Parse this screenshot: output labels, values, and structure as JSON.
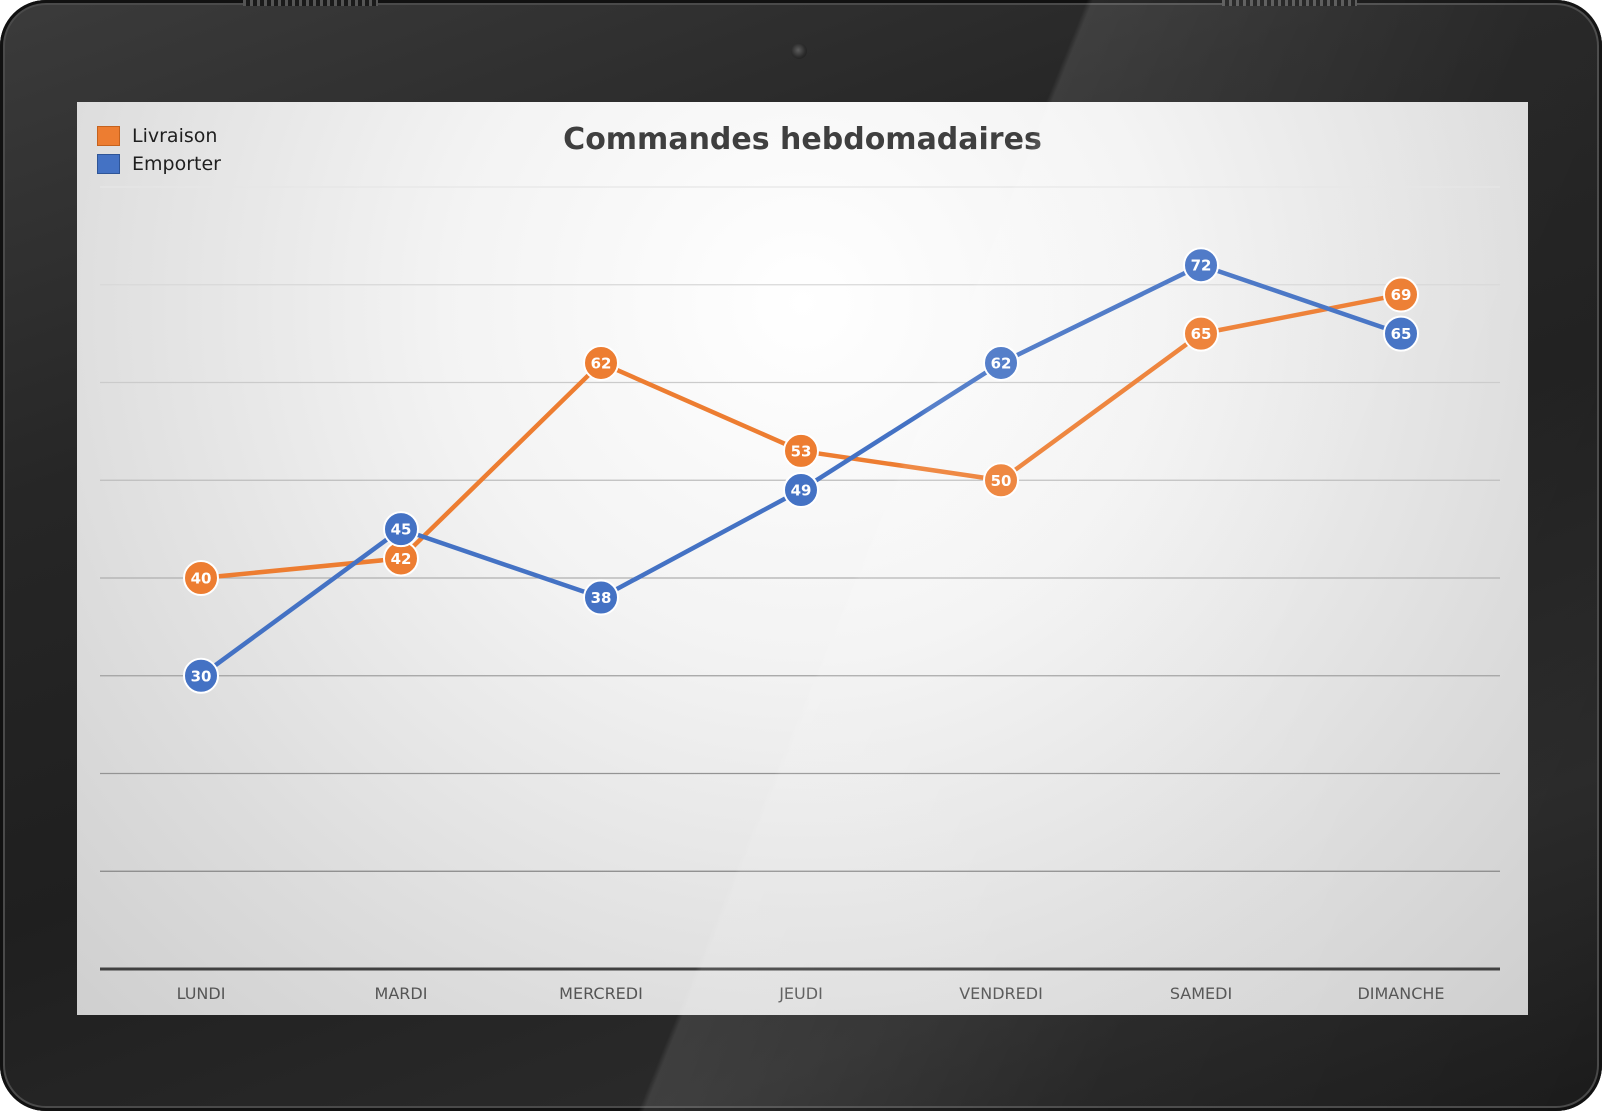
{
  "chart_data": {
    "type": "line",
    "title": "Commandes hebdomadaires",
    "categories": [
      "LUNDI",
      "MARDI",
      "MERCREDI",
      "JEUDI",
      "VENDREDI",
      "SAMEDI",
      "DIMANCHE"
    ],
    "series": [
      {
        "name": "Livraison",
        "color": "#ED7D31",
        "values": [
          40,
          42,
          62,
          53,
          50,
          65,
          69
        ]
      },
      {
        "name": "Emporter",
        "color": "#4472C4",
        "values": [
          30,
          45,
          38,
          49,
          62,
          72,
          65
        ]
      }
    ],
    "ylim": [
      0,
      80
    ],
    "ytick_step": 10,
    "grid": true,
    "data_labels": true,
    "legend_position": "top-left",
    "xlabel": "",
    "ylabel": ""
  }
}
